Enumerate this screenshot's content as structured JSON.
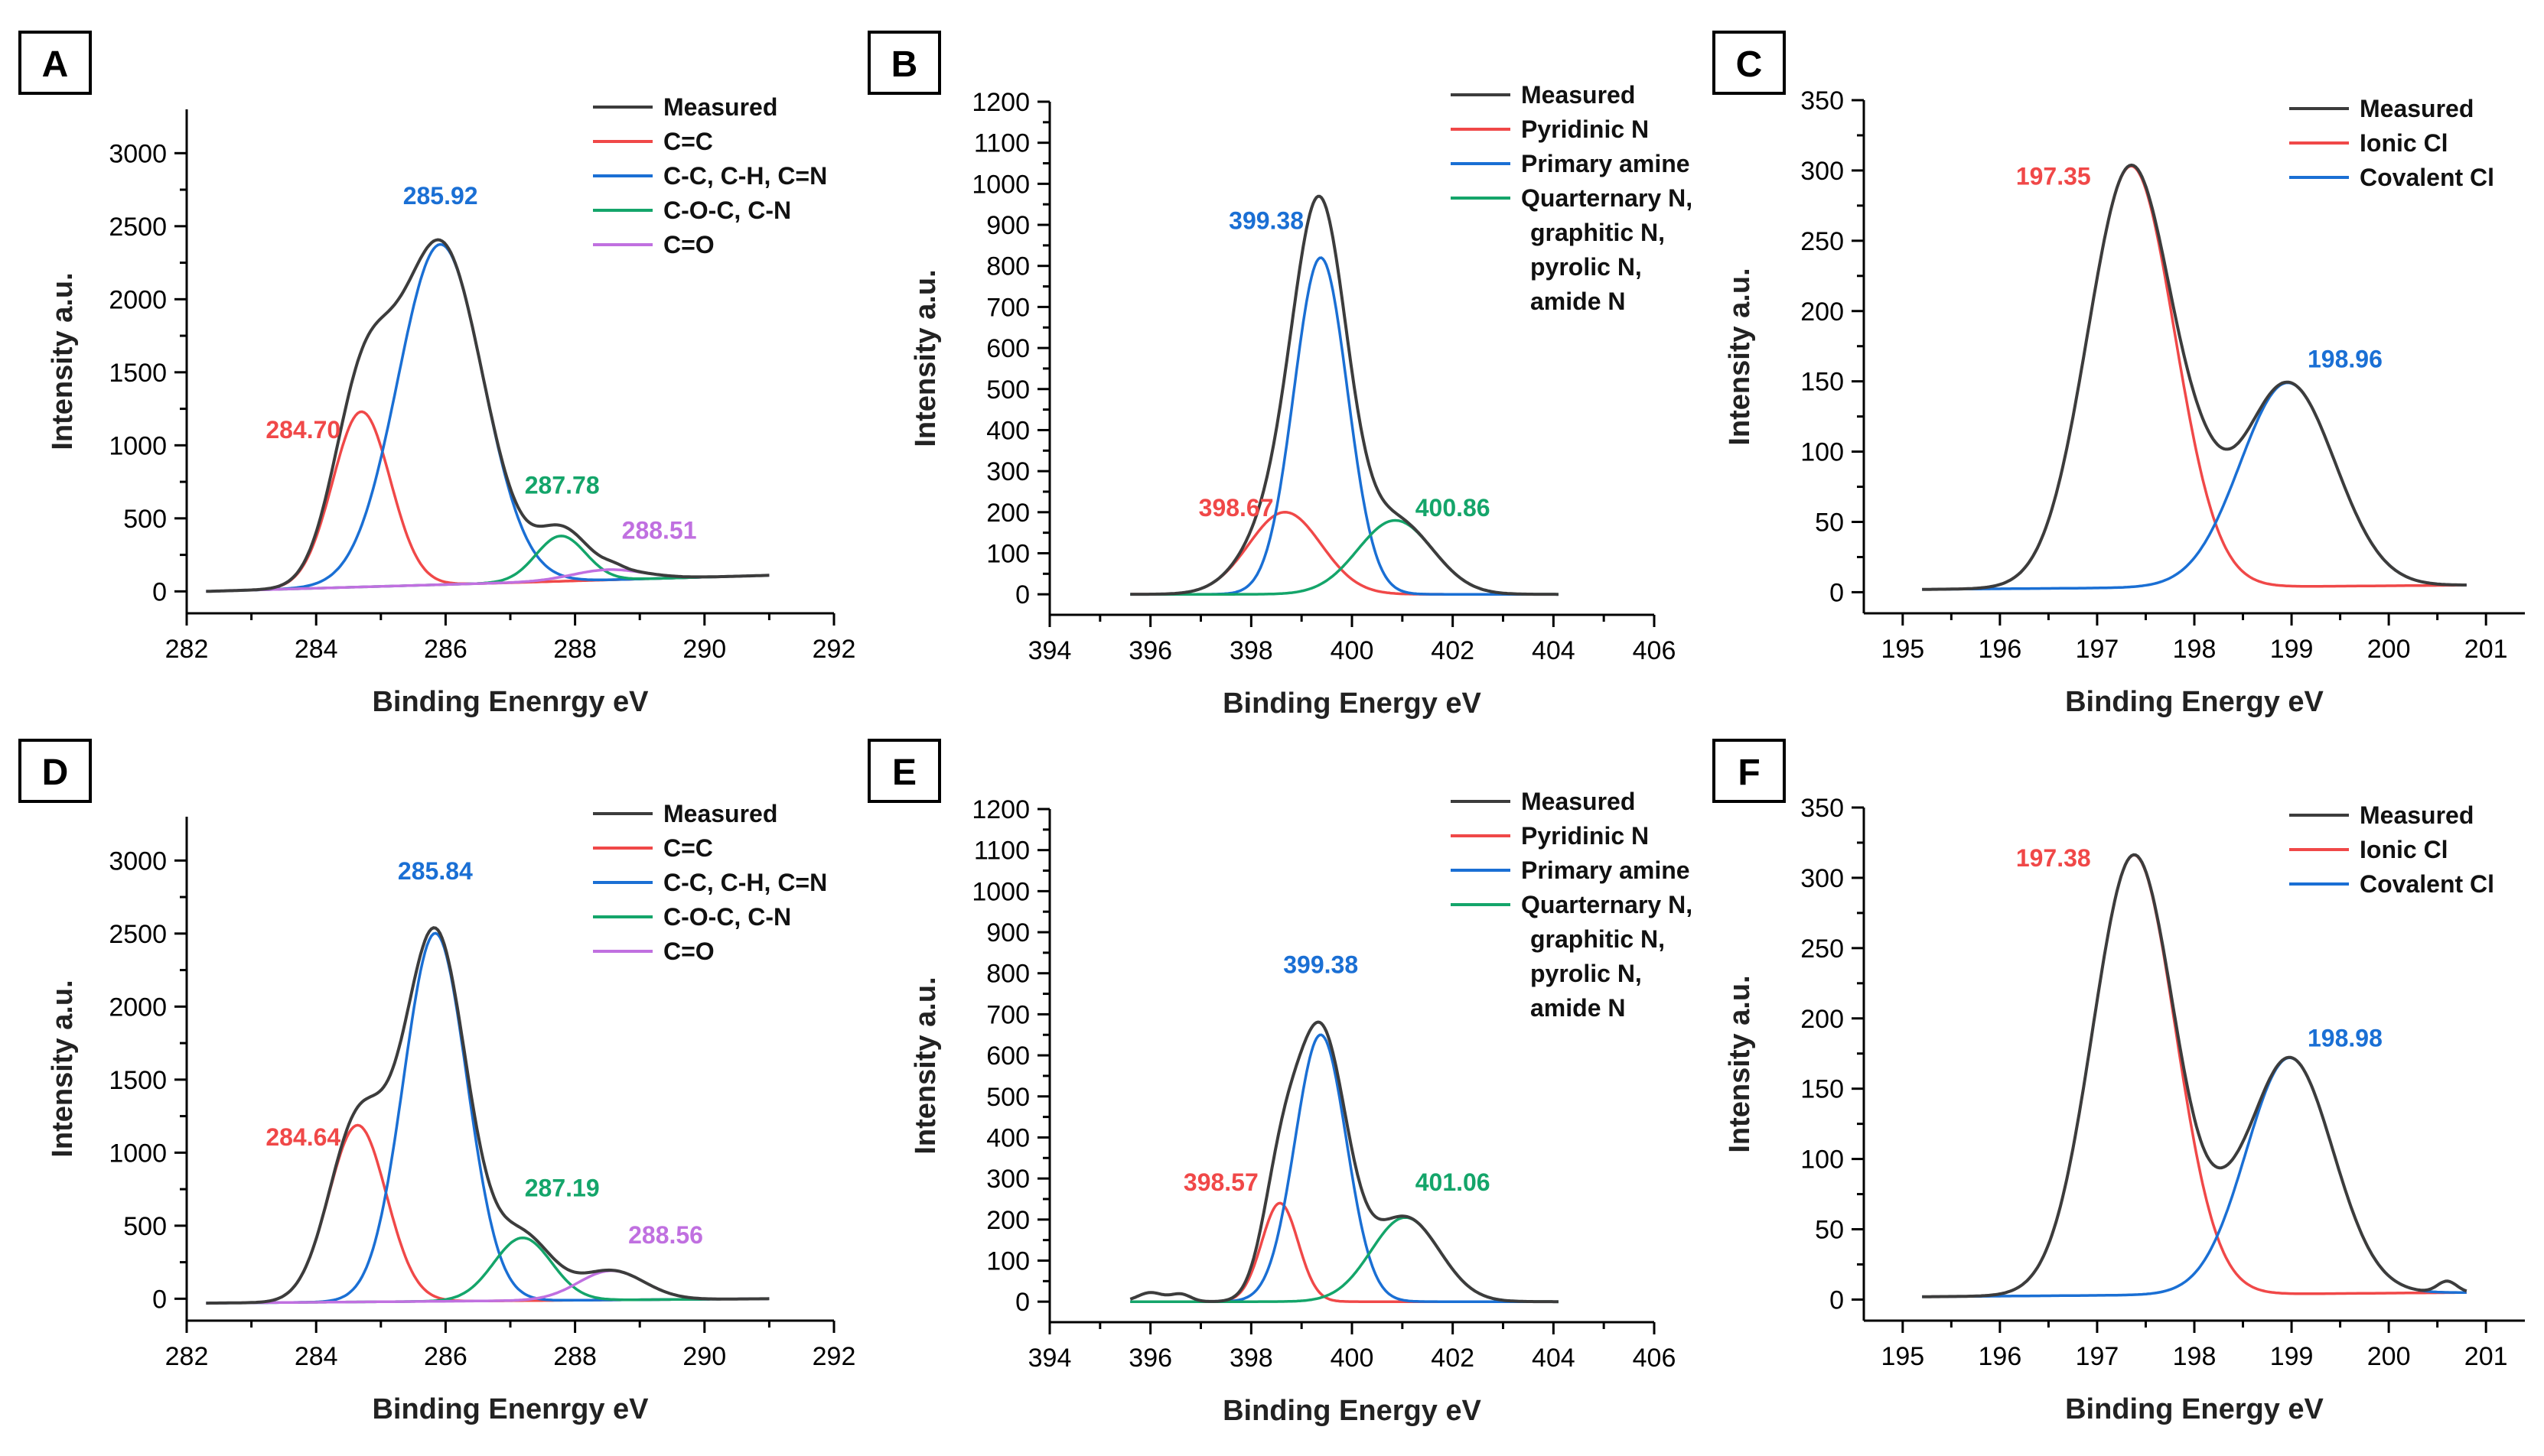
{
  "colors": {
    "measured": "#3c3c3c",
    "red": "#f04848",
    "blue": "#1a6fd4",
    "green": "#14a56a",
    "purple": "#c070e0",
    "axis": "#000000"
  },
  "chart_data": [
    {
      "panel": "A",
      "type": "line",
      "xlabel": "Binding Enenrgy eV",
      "ylabel": "Intensity a.u.",
      "xlim": [
        282,
        292
      ],
      "ylim": [
        -150,
        3300
      ],
      "xticks": [
        282,
        284,
        286,
        288,
        290,
        292
      ],
      "yticks": [
        0,
        500,
        1000,
        1500,
        2000,
        2500,
        3000
      ],
      "data_range": [
        282.3,
        291.0
      ],
      "baseline": {
        "type": "linear",
        "start": 0,
        "end": 110
      },
      "measured_bumps": [
        {
          "x": 288.6,
          "w": 0.15,
          "a": 20
        }
      ],
      "series": [
        {
          "name": "Measured",
          "color_key": "measured",
          "is_sum": true
        },
        {
          "name": "C=C",
          "color_key": "red",
          "center": 284.7,
          "fwhm": 1.05,
          "amp": 1200
        },
        {
          "name": "C-C, C-H, C=N",
          "color_key": "blue",
          "center": 285.92,
          "fwhm": 1.55,
          "amp": 2330
        },
        {
          "name": "C-O-C, C-N",
          "color_key": "green",
          "center": 287.78,
          "fwhm": 0.9,
          "amp": 310
        },
        {
          "name": "C=O",
          "color_key": "purple",
          "center": 288.51,
          "fwhm": 1.3,
          "amp": 70
        }
      ],
      "peak_labels": [
        {
          "text": "285.92",
          "color_key": "blue",
          "x": 285.92,
          "y": 2650
        },
        {
          "text": "284.70",
          "color_key": "red",
          "x": 283.8,
          "y": 1050
        },
        {
          "text": "287.78",
          "color_key": "green",
          "x": 287.8,
          "y": 670
        },
        {
          "text": "288.51",
          "color_key": "purple",
          "x": 289.3,
          "y": 360
        }
      ]
    },
    {
      "panel": "B",
      "type": "line",
      "xlabel": "Binding Energy eV",
      "ylabel": "Intensity a.u.",
      "xlim": [
        394,
        406
      ],
      "ylim": [
        -50,
        1200
      ],
      "xticks": [
        394,
        396,
        398,
        400,
        402,
        404,
        406
      ],
      "yticks": [
        0,
        100,
        200,
        300,
        400,
        500,
        600,
        700,
        800,
        900,
        1000,
        1100,
        1200
      ],
      "data_range": [
        395.6,
        404.1
      ],
      "baseline": {
        "type": "linear",
        "start": 0,
        "end": 0
      },
      "measured_bumps": [],
      "series": [
        {
          "name": "Measured",
          "color_key": "measured",
          "is_sum": true
        },
        {
          "name": "Pyridinic N",
          "color_key": "red",
          "center": 398.67,
          "fwhm": 1.7,
          "amp": 200
        },
        {
          "name": "Primary amine",
          "color_key": "blue",
          "center": 399.38,
          "fwhm": 1.25,
          "amp": 820
        },
        {
          "name": "Quarternary N, graphitic N, pyrolic N, amide N",
          "color_key": "green",
          "center": 400.86,
          "fwhm": 1.75,
          "amp": 180
        }
      ],
      "peak_labels": [
        {
          "text": "399.38",
          "color_key": "blue",
          "x": 398.3,
          "y": 890
        },
        {
          "text": "398.67",
          "color_key": "red",
          "x": 397.7,
          "y": 190
        },
        {
          "text": "400.86",
          "color_key": "green",
          "x": 402.0,
          "y": 190
        }
      ]
    },
    {
      "panel": "C",
      "type": "line",
      "xlabel": "Binding Energy eV",
      "ylabel": "Intensity a.u.",
      "xlim": [
        194.6,
        201.4
      ],
      "ylim": [
        -15,
        350
      ],
      "xticks": [
        195,
        196,
        197,
        198,
        199,
        200,
        201
      ],
      "yticks": [
        0,
        50,
        100,
        150,
        200,
        250,
        300,
        350
      ],
      "data_range": [
        195.2,
        200.8
      ],
      "baseline": {
        "type": "linear",
        "start": 2,
        "end": 5
      },
      "measured_bumps": [
        {
          "x": 198.1,
          "w": 0.22,
          "a": 14
        }
      ],
      "series": [
        {
          "name": "Measured",
          "color_key": "measured",
          "is_sum": true
        },
        {
          "name": "Ionic Cl",
          "color_key": "red",
          "center": 197.35,
          "fwhm": 1.05,
          "amp": 300
        },
        {
          "name": "Covalent Cl",
          "color_key": "blue",
          "center": 198.96,
          "fwhm": 1.15,
          "amp": 145
        }
      ],
      "peak_labels": [
        {
          "text": "197.35",
          "color_key": "red",
          "x": 196.55,
          "y": 290
        },
        {
          "text": "198.96",
          "color_key": "blue",
          "x": 199.55,
          "y": 160
        }
      ]
    },
    {
      "panel": "D",
      "type": "line",
      "xlabel": "Binding Enenrgy eV",
      "ylabel": "Intensity a.u.",
      "xlim": [
        282,
        292
      ],
      "ylim": [
        -150,
        3300
      ],
      "xticks": [
        282,
        284,
        286,
        288,
        290,
        292
      ],
      "yticks": [
        0,
        500,
        1000,
        1500,
        2000,
        2500,
        3000
      ],
      "data_range": [
        282.3,
        291.0
      ],
      "baseline": {
        "type": "linear",
        "start": -30,
        "end": 0
      },
      "measured_bumps": [],
      "series": [
        {
          "name": "Measured",
          "color_key": "measured",
          "is_sum": true
        },
        {
          "name": "C=C",
          "color_key": "red",
          "center": 284.64,
          "fwhm": 1.05,
          "amp": 1210
        },
        {
          "name": "C-C, C-H, C=N",
          "color_key": "blue",
          "center": 285.84,
          "fwhm": 1.15,
          "amp": 2520
        },
        {
          "name": "C-O-C, C-N",
          "color_key": "green",
          "center": 287.19,
          "fwhm": 1.05,
          "amp": 430
        },
        {
          "name": "C=O",
          "color_key": "purple",
          "center": 288.56,
          "fwhm": 1.2,
          "amp": 200
        }
      ],
      "peak_labels": [
        {
          "text": "285.84",
          "color_key": "blue",
          "x": 285.84,
          "y": 2870
        },
        {
          "text": "284.64",
          "color_key": "red",
          "x": 283.8,
          "y": 1050
        },
        {
          "text": "287.19",
          "color_key": "green",
          "x": 287.8,
          "y": 700
        },
        {
          "text": "288.56",
          "color_key": "purple",
          "x": 289.4,
          "y": 380
        }
      ]
    },
    {
      "panel": "E",
      "type": "line",
      "xlabel": "Binding Energy eV",
      "ylabel": "Intensity a.u.",
      "xlim": [
        394,
        406
      ],
      "ylim": [
        -50,
        1200
      ],
      "xticks": [
        394,
        396,
        398,
        400,
        402,
        404,
        406
      ],
      "yticks": [
        0,
        100,
        200,
        300,
        400,
        500,
        600,
        700,
        800,
        900,
        1000,
        1100,
        1200
      ],
      "data_range": [
        395.6,
        404.1
      ],
      "baseline": {
        "type": "linear",
        "start": 0,
        "end": 0
      },
      "measured_bumps": [
        {
          "x": 396.0,
          "w": 0.25,
          "a": 22
        },
        {
          "x": 396.6,
          "w": 0.2,
          "a": 18
        }
      ],
      "series": [
        {
          "name": "Measured",
          "color_key": "measured",
          "is_sum": true
        },
        {
          "name": "Pyridinic N",
          "color_key": "red",
          "center": 398.57,
          "fwhm": 0.85,
          "amp": 240
        },
        {
          "name": "Primary amine",
          "color_key": "blue",
          "center": 399.38,
          "fwhm": 1.2,
          "amp": 650
        },
        {
          "name": "Quarternary N, graphitic N, pyrolic N, amide N",
          "color_key": "green",
          "center": 401.06,
          "fwhm": 1.6,
          "amp": 205
        }
      ],
      "peak_labels": [
        {
          "text": "399.38",
          "color_key": "blue",
          "x": 399.38,
          "y": 800
        },
        {
          "text": "398.57",
          "color_key": "red",
          "x": 397.4,
          "y": 270
        },
        {
          "text": "401.06",
          "color_key": "green",
          "x": 402.0,
          "y": 270
        }
      ]
    },
    {
      "panel": "F",
      "type": "line",
      "xlabel": "Binding Energy eV",
      "ylabel": "Intensity a.u.",
      "xlim": [
        194.6,
        201.4
      ],
      "ylim": [
        -15,
        350
      ],
      "xticks": [
        195,
        196,
        197,
        198,
        199,
        200,
        201
      ],
      "yticks": [
        0,
        50,
        100,
        150,
        200,
        250,
        300,
        350
      ],
      "data_range": [
        195.2,
        200.8
      ],
      "baseline": {
        "type": "linear",
        "start": 2,
        "end": 5
      },
      "measured_bumps": [
        {
          "x": 198.3,
          "w": 0.2,
          "a": 8
        },
        {
          "x": 200.6,
          "w": 0.1,
          "a": 8
        }
      ],
      "series": [
        {
          "name": "Measured",
          "color_key": "measured",
          "is_sum": true
        },
        {
          "name": "Ionic Cl",
          "color_key": "red",
          "center": 197.38,
          "fwhm": 1.0,
          "amp": 313
        },
        {
          "name": "Covalent Cl",
          "color_key": "blue",
          "center": 198.98,
          "fwhm": 1.05,
          "amp": 168
        }
      ],
      "peak_labels": [
        {
          "text": "197.38",
          "color_key": "red",
          "x": 196.55,
          "y": 308
        },
        {
          "text": "198.98",
          "color_key": "blue",
          "x": 199.55,
          "y": 180
        }
      ]
    }
  ]
}
